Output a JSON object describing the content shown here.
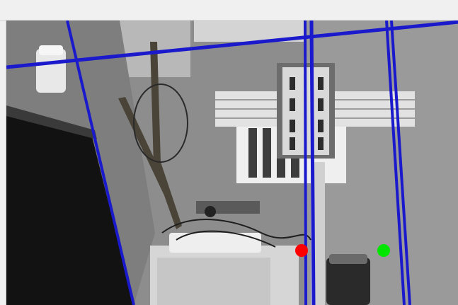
{
  "window": {
    "title": ""
  },
  "overlay": {
    "line_color": "#1a1acc",
    "marker_colors": {
      "red": "#ff0000",
      "green": "#00e600"
    }
  },
  "scene": {
    "type": "grayscale camera frame with detected line overlay"
  }
}
